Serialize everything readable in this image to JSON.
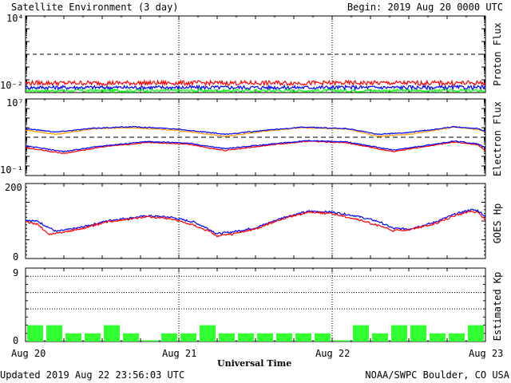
{
  "header": {
    "title": "Satellite Environment (3 day)",
    "begin": "Begin:  2019 Aug 20 0000 UTC"
  },
  "footer": {
    "updated": "Updated 2019 Aug 22 23:56:03 UTC",
    "credit": "NOAA/SWPC Boulder, CO USA"
  },
  "colors": {
    "red": "#ff0000",
    "blue": "#0000ff",
    "green": "#00ff00",
    "orange": "#ff9900",
    "kp_bar": "#33ff33",
    "frame": "#000000"
  },
  "chart_data": [
    {
      "type": "line",
      "panel": "proton",
      "ylabel": "Proton Flux",
      "ytick_labels": [
        "10⁴",
        "10⁻²"
      ],
      "yscale": "log",
      "ylim_exponent": [
        -2,
        4
      ],
      "threshold_exponent": 1,
      "x_tick_labels": [
        "Aug 20",
        "Aug 21",
        "Aug 22",
        "Aug 23"
      ],
      "x_days": [
        0,
        1,
        2,
        3
      ],
      "series": [
        {
          "color": "red",
          "day_exponent": [
            [
              0,
              -1.25
            ],
            [
              3,
              -1.25
            ]
          ],
          "noise": 0.18
        },
        {
          "color": "blue",
          "day_exponent": [
            [
              0,
              -1.6
            ],
            [
              3,
              -1.6
            ]
          ],
          "noise": 0.15
        },
        {
          "color": "green",
          "day_exponent": [
            [
              0,
              -1.85
            ],
            [
              3,
              -1.85
            ]
          ],
          "noise": 0.12
        }
      ]
    },
    {
      "type": "line",
      "panel": "electron",
      "ylabel": "Electron Flux",
      "ytick_labels": [
        "10⁷",
        "10⁻¹"
      ],
      "yscale": "log",
      "ylim_exponent": [
        -1,
        7
      ],
      "threshold_exponent": 3,
      "series": [
        {
          "color": "orange",
          "points": [
            [
              0,
              3.75
            ],
            [
              0.2,
              3.3
            ],
            [
              0.45,
              3.9
            ],
            [
              0.7,
              4.0
            ],
            [
              1.0,
              3.7
            ],
            [
              1.3,
              3.1
            ],
            [
              1.55,
              3.6
            ],
            [
              1.8,
              4.0
            ],
            [
              2.1,
              3.85
            ],
            [
              2.3,
              3.1
            ],
            [
              2.5,
              3.3
            ],
            [
              2.8,
              4.05
            ],
            [
              2.95,
              3.8
            ],
            [
              3.0,
              3.6
            ]
          ]
        },
        {
          "color": "blue",
          "points": [
            [
              0,
              3.9
            ],
            [
              0.2,
              3.55
            ],
            [
              0.45,
              3.95
            ],
            [
              0.7,
              4.1
            ],
            [
              1.0,
              3.85
            ],
            [
              1.3,
              3.3
            ],
            [
              1.55,
              3.7
            ],
            [
              1.8,
              4.05
            ],
            [
              2.1,
              3.9
            ],
            [
              2.3,
              3.3
            ],
            [
              2.5,
              3.5
            ],
            [
              2.8,
              4.1
            ],
            [
              2.95,
              3.9
            ],
            [
              3.0,
              3.6
            ]
          ]
        },
        {
          "color": "red",
          "points": [
            [
              0,
              1.9
            ],
            [
              0.25,
              1.3
            ],
            [
              0.5,
              2.0
            ],
            [
              0.8,
              2.45
            ],
            [
              1.05,
              2.3
            ],
            [
              1.3,
              1.6
            ],
            [
              1.6,
              2.2
            ],
            [
              1.85,
              2.6
            ],
            [
              2.1,
              2.4
            ],
            [
              2.4,
              1.5
            ],
            [
              2.55,
              1.9
            ],
            [
              2.8,
              2.5
            ],
            [
              2.95,
              2.2
            ],
            [
              3.0,
              1.6
            ]
          ]
        },
        {
          "color": "blue",
          "points": [
            [
              0,
              2.1
            ],
            [
              0.25,
              1.5
            ],
            [
              0.5,
              2.1
            ],
            [
              0.8,
              2.55
            ],
            [
              1.05,
              2.4
            ],
            [
              1.3,
              1.8
            ],
            [
              1.6,
              2.3
            ],
            [
              1.85,
              2.65
            ],
            [
              2.1,
              2.5
            ],
            [
              2.4,
              1.65
            ],
            [
              2.55,
              2.0
            ],
            [
              2.8,
              2.6
            ],
            [
              2.95,
              2.3
            ],
            [
              3.0,
              1.9
            ]
          ]
        }
      ]
    },
    {
      "type": "line",
      "panel": "goes_hp",
      "ylabel": "GOES Hp",
      "ytick_labels": [
        "200",
        "0"
      ],
      "ylim": [
        0,
        200
      ],
      "series": [
        {
          "color": "blue",
          "points": [
            [
              0,
              103
            ],
            [
              0.08,
              99
            ],
            [
              0.2,
              72
            ],
            [
              0.35,
              82
            ],
            [
              0.55,
              102
            ],
            [
              0.8,
              114
            ],
            [
              0.95,
              110
            ],
            [
              1.1,
              97
            ],
            [
              1.2,
              78
            ],
            [
              1.25,
              66
            ],
            [
              1.35,
              71
            ],
            [
              1.5,
              82
            ],
            [
              1.7,
              112
            ],
            [
              1.85,
              126
            ],
            [
              2.0,
              124
            ],
            [
              2.15,
              114
            ],
            [
              2.3,
              99
            ],
            [
              2.4,
              80
            ],
            [
              2.5,
              79
            ],
            [
              2.65,
              94
            ],
            [
              2.8,
              118
            ],
            [
              2.9,
              130
            ],
            [
              2.95,
              128
            ],
            [
              3.0,
              112
            ]
          ]
        },
        {
          "color": "red",
          "points": [
            [
              0,
              97
            ],
            [
              0.08,
              92
            ],
            [
              0.15,
              64
            ],
            [
              0.35,
              78
            ],
            [
              0.55,
              99
            ],
            [
              0.8,
              112
            ],
            [
              0.95,
              106
            ],
            [
              1.1,
              89
            ],
            [
              1.2,
              72
            ],
            [
              1.25,
              60
            ],
            [
              1.35,
              65
            ],
            [
              1.5,
              79
            ],
            [
              1.7,
              109
            ],
            [
              1.85,
              124
            ],
            [
              2.0,
              120
            ],
            [
              2.15,
              106
            ],
            [
              2.3,
              88
            ],
            [
              2.4,
              74
            ],
            [
              2.5,
              77
            ],
            [
              2.65,
              90
            ],
            [
              2.8,
              114
            ],
            [
              2.9,
              126
            ],
            [
              2.95,
              123
            ],
            [
              3.0,
              103
            ]
          ]
        }
      ]
    },
    {
      "type": "bar",
      "panel": "kp",
      "ylabel": "Estimated Kp",
      "ytick_labels": [
        "9",
        "0"
      ],
      "ylim": [
        0,
        9
      ],
      "dotted_levels": [
        4,
        6,
        8,
        9
      ],
      "values": [
        2,
        2,
        1,
        1,
        2,
        1,
        0.15,
        1,
        1,
        2,
        1,
        1,
        1,
        1,
        1,
        1,
        0.15,
        2,
        1,
        2,
        2,
        1,
        1,
        2
      ]
    }
  ],
  "xlabel": "Universal Time",
  "x_tick_labels": [
    "Aug 20",
    "Aug 21",
    "Aug 22",
    "Aug 23"
  ]
}
